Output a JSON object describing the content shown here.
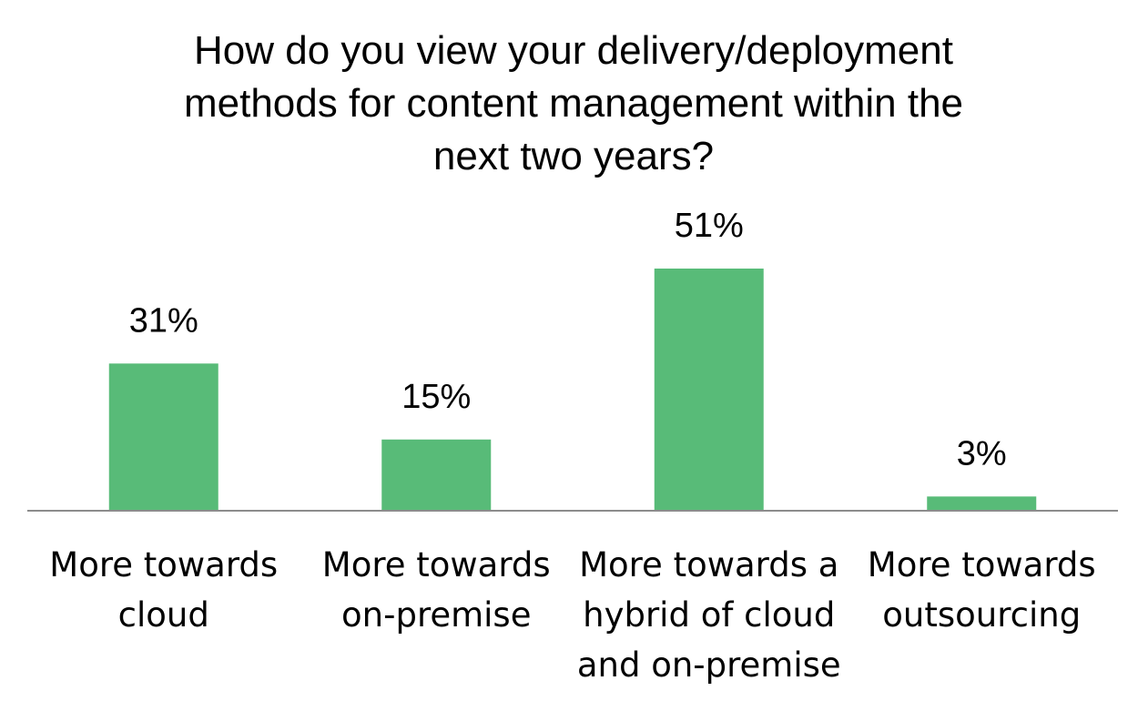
{
  "chart_data": {
    "type": "bar",
    "title_lines": [
      "How do you view your delivery/deployment",
      "methods for content management within the",
      "next two years?"
    ],
    "categories": [
      [
        "More towards",
        "cloud"
      ],
      [
        "More towards",
        "on-premise"
      ],
      [
        "More towards a",
        "hybrid of cloud",
        "and on-premise"
      ],
      [
        "More towards",
        "outsourcing"
      ]
    ],
    "values": [
      31,
      15,
      51,
      3
    ],
    "value_labels": [
      "31%",
      "15%",
      "51%",
      "3%"
    ],
    "xlabel": "",
    "ylabel": "",
    "ylim": [
      0,
      51
    ],
    "grid": false,
    "legend": "none",
    "bar_color": "#58BB78",
    "axis_color": "#8C8C8C"
  }
}
